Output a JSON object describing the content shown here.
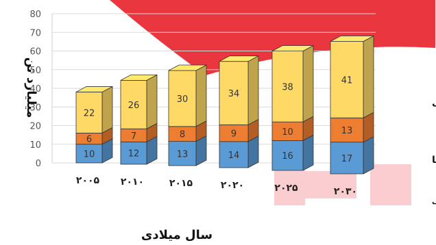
{
  "chart_data": {
    "type": "bar",
    "stacked": true,
    "style": "3d",
    "categories": [
      "۲۰۰۵",
      "۲۰۱۰",
      "۲۰۱۵",
      "۲۰۲۰",
      "۲۰۲۵",
      "۲۰۳۰"
    ],
    "series": [
      {
        "name": "سوخت های فسیلی",
        "color": "#5b9bd5",
        "values": [
          10,
          12,
          13,
          14,
          16,
          17
        ]
      },
      {
        "name": "فلزها",
        "color": "#ed7d31",
        "values": [
          6,
          7,
          8,
          9,
          10,
          13
        ]
      },
      {
        "name": "مواد معدنی",
        "color": "#ffd966",
        "values": [
          22,
          26,
          30,
          34,
          38,
          41
        ]
      }
    ],
    "xlabel": "سال میلادی",
    "ylabel": "میلیارد تن",
    "ylim": [
      0,
      80
    ],
    "yticks": [
      "0",
      "10",
      "20",
      "30",
      "40",
      "50",
      "60",
      "70",
      "80"
    ],
    "grid": true,
    "legend": "right"
  },
  "watermark_color": "#e8202a"
}
